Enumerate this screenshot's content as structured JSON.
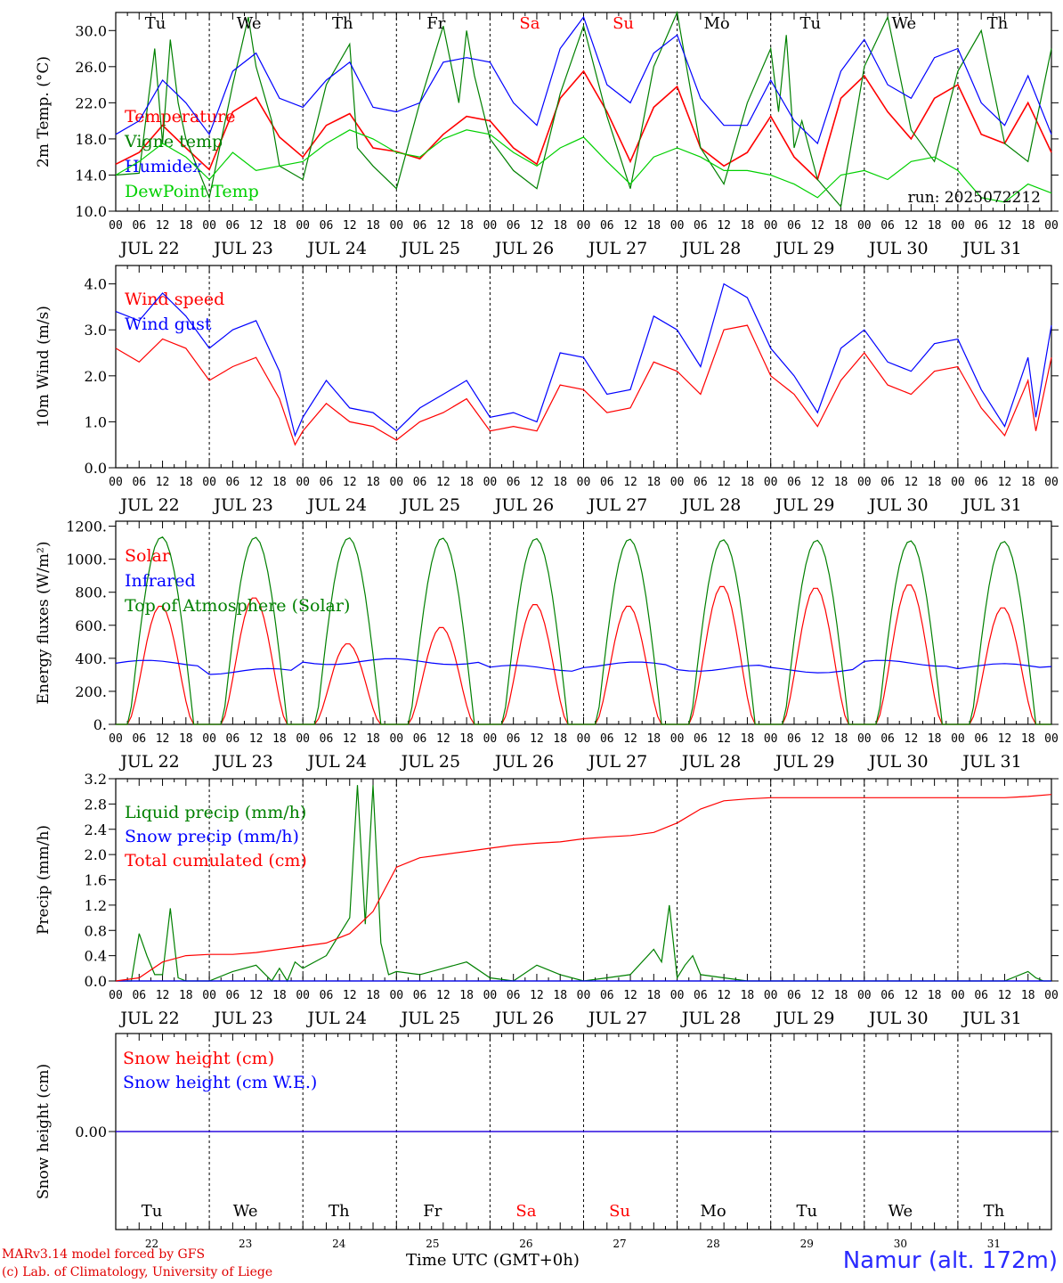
{
  "chart_data": [
    {
      "type": "line",
      "id": "temp",
      "ylabel": "2m Temp. (°C)",
      "ylim": [
        10,
        32
      ],
      "yticks": [
        "10.0",
        "14.0",
        "18.0",
        "22.0",
        "26.0",
        "30.0"
      ],
      "annotation": "run: 2025072212",
      "series": [
        {
          "name": "Temperature",
          "color": "#ff0000",
          "x": [
            0,
            6,
            12,
            18,
            24,
            30,
            36,
            42,
            48,
            54,
            60,
            66,
            72,
            78,
            84,
            90,
            96,
            102,
            108,
            114,
            120,
            126,
            132,
            138,
            144,
            150,
            156,
            162,
            168,
            174,
            180,
            186,
            192,
            198,
            204,
            210,
            216,
            222,
            228,
            234,
            240
          ],
          "y": [
            15.2,
            16.5,
            19.5,
            17.0,
            14.6,
            21.0,
            22.6,
            18.2,
            16.0,
            19.5,
            20.8,
            17.0,
            16.6,
            15.8,
            18.5,
            20.5,
            20.0,
            17.0,
            15.2,
            22.5,
            25.5,
            21.0,
            15.5,
            21.5,
            23.8,
            17.0,
            15.0,
            16.5,
            20.5,
            16.0,
            13.5,
            22.5,
            25.0,
            21.0,
            18.0,
            22.5,
            24.0,
            18.5,
            17.5,
            22.0,
            16.5
          ]
        },
        {
          "name": "Vigne temp",
          "color": "#008000",
          "x": [
            0,
            6,
            10,
            12,
            14,
            16,
            18,
            24,
            30,
            34,
            36,
            40,
            42,
            48,
            54,
            60,
            62,
            66,
            72,
            78,
            84,
            88,
            90,
            92,
            96,
            102,
            108,
            114,
            120,
            126,
            132,
            138,
            144,
            150,
            156,
            162,
            168,
            170,
            172,
            174,
            176,
            180,
            186,
            192,
            198,
            204,
            210,
            216,
            222,
            228,
            234,
            240
          ],
          "y": [
            14.0,
            14.2,
            28.0,
            17.5,
            29.0,
            22.0,
            18.0,
            11.5,
            24.0,
            31.5,
            26.0,
            20.0,
            15.0,
            13.5,
            24.0,
            28.5,
            17.0,
            15.0,
            12.5,
            22.0,
            30.5,
            22.0,
            30.0,
            25.0,
            18.0,
            14.5,
            12.5,
            23.0,
            30.5,
            20.5,
            12.5,
            26.0,
            32.0,
            17.0,
            13.0,
            22.0,
            28.0,
            21.0,
            29.5,
            17.0,
            20.0,
            13.5,
            10.5,
            26.0,
            31.5,
            19.0,
            15.5,
            25.5,
            30.0,
            17.5,
            15.5,
            28.0
          ]
        },
        {
          "name": "Humidex",
          "color": "#0000ff",
          "x": [
            0,
            6,
            12,
            18,
            24,
            30,
            36,
            42,
            48,
            54,
            60,
            66,
            72,
            78,
            84,
            90,
            96,
            102,
            108,
            114,
            120,
            126,
            132,
            138,
            144,
            150,
            156,
            162,
            168,
            174,
            180,
            186,
            192,
            198,
            204,
            210,
            216,
            222,
            228,
            234,
            240
          ],
          "y": [
            18.5,
            20.0,
            24.5,
            22.0,
            18.5,
            25.5,
            27.5,
            22.5,
            21.5,
            24.5,
            26.5,
            21.5,
            21.0,
            22.0,
            26.5,
            27.0,
            26.5,
            22.0,
            19.5,
            28.0,
            31.5,
            24.0,
            22.0,
            27.5,
            29.5,
            22.5,
            19.5,
            19.5,
            24.5,
            20.0,
            17.5,
            25.5,
            29.0,
            24.0,
            22.5,
            27.0,
            28.0,
            22.0,
            19.5,
            25.0,
            18.5
          ]
        },
        {
          "name": "DewPoint Temp",
          "color": "#00d000",
          "x": [
            0,
            6,
            12,
            18,
            24,
            30,
            36,
            42,
            48,
            54,
            60,
            66,
            72,
            78,
            84,
            90,
            96,
            102,
            108,
            114,
            120,
            126,
            132,
            138,
            144,
            150,
            156,
            162,
            168,
            174,
            180,
            186,
            192,
            198,
            204,
            210,
            216,
            222,
            228,
            234,
            240
          ],
          "y": [
            14.0,
            15.5,
            17.5,
            16.0,
            13.5,
            16.5,
            14.5,
            15.0,
            15.5,
            17.5,
            19.0,
            18.0,
            16.5,
            16.0,
            18.0,
            19.0,
            18.5,
            16.5,
            15.0,
            17.0,
            18.2,
            15.5,
            13.0,
            16.0,
            17.0,
            16.0,
            14.5,
            14.5,
            14.0,
            13.0,
            11.5,
            14.0,
            14.5,
            13.5,
            15.5,
            16.0,
            14.5,
            11.5,
            11.0,
            13.0,
            12.0
          ]
        }
      ]
    },
    {
      "type": "line",
      "id": "wind",
      "ylabel": "10m Wind (m/s)",
      "ylim": [
        0,
        4.4
      ],
      "yticks": [
        "0.0",
        "1.0",
        "2.0",
        "3.0",
        "4.0"
      ],
      "series": [
        {
          "name": "Wind speed",
          "color": "#ff0000",
          "x": [
            0,
            6,
            12,
            18,
            24,
            30,
            36,
            42,
            46,
            48,
            54,
            60,
            66,
            72,
            78,
            84,
            90,
            96,
            102,
            108,
            114,
            120,
            126,
            132,
            138,
            144,
            150,
            156,
            162,
            168,
            174,
            180,
            186,
            192,
            198,
            204,
            210,
            216,
            222,
            228,
            234,
            236,
            240
          ],
          "y": [
            2.6,
            2.3,
            2.8,
            2.6,
            1.9,
            2.2,
            2.4,
            1.5,
            0.5,
            0.8,
            1.4,
            1.0,
            0.9,
            0.6,
            1.0,
            1.2,
            1.5,
            0.8,
            0.9,
            0.8,
            1.8,
            1.7,
            1.2,
            1.3,
            2.3,
            2.1,
            1.6,
            3.0,
            3.1,
            2.0,
            1.6,
            0.9,
            1.9,
            2.5,
            1.8,
            1.6,
            2.1,
            2.2,
            1.3,
            0.7,
            1.9,
            0.8,
            2.4
          ]
        },
        {
          "name": "Wind gust",
          "color": "#0000ff",
          "x": [
            0,
            6,
            12,
            18,
            24,
            30,
            36,
            42,
            46,
            48,
            54,
            60,
            66,
            72,
            78,
            84,
            90,
            96,
            102,
            108,
            114,
            120,
            126,
            132,
            138,
            144,
            150,
            156,
            162,
            168,
            174,
            180,
            186,
            192,
            198,
            204,
            210,
            216,
            222,
            228,
            234,
            236,
            240
          ],
          "y": [
            3.4,
            3.2,
            3.8,
            3.3,
            2.6,
            3.0,
            3.2,
            2.1,
            0.7,
            1.1,
            1.9,
            1.3,
            1.2,
            0.8,
            1.3,
            1.6,
            1.9,
            1.1,
            1.2,
            1.0,
            2.5,
            2.4,
            1.6,
            1.7,
            3.3,
            3.0,
            2.2,
            4.0,
            3.7,
            2.6,
            2.0,
            1.2,
            2.6,
            3.0,
            2.3,
            2.1,
            2.7,
            2.8,
            1.7,
            0.9,
            2.4,
            1.1,
            3.1
          ]
        }
      ]
    },
    {
      "type": "line",
      "id": "energy",
      "ylabel": "Energy fluxes (W/m²)",
      "ylim": [
        0,
        1230
      ],
      "yticks": [
        "0.",
        "200.",
        "400.",
        "600.",
        "800.",
        "1000.",
        "1200."
      ],
      "series": [
        {
          "name": "Solar",
          "color": "#ff0000",
          "day_peaks": [
            720,
            770,
            490,
            590,
            730,
            720,
            840,
            830,
            850,
            710
          ]
        },
        {
          "name": "Infrared",
          "color": "#0000ff",
          "day_levels": [
            370,
            320,
            380,
            380,
            340,
            360,
            340,
            330,
            370,
            350
          ]
        },
        {
          "name": "Top of Atmosphere (Solar)",
          "color": "#008000",
          "day_peaks": [
            1135,
            1133,
            1130,
            1128,
            1125,
            1122,
            1118,
            1115,
            1112,
            1108
          ]
        }
      ]
    },
    {
      "type": "line",
      "id": "precip",
      "ylabel": "Precip (mm/h)",
      "ylim": [
        0,
        3.2
      ],
      "yticks": [
        "0.0",
        "0.4",
        "0.8",
        "1.2",
        "1.6",
        "2.0",
        "2.4",
        "2.8",
        "3.2"
      ],
      "series": [
        {
          "name": "Liquid precip (mm/h)",
          "color": "#008000",
          "x": [
            0,
            4,
            6,
            8,
            10,
            12,
            14,
            16,
            18,
            24,
            30,
            36,
            40,
            42,
            44,
            46,
            48,
            54,
            60,
            62,
            64,
            66,
            68,
            70,
            72,
            78,
            84,
            90,
            96,
            102,
            108,
            114,
            120,
            126,
            132,
            138,
            140,
            142,
            144,
            146,
            148,
            150,
            156,
            162,
            168,
            174,
            180,
            186,
            192,
            198,
            204,
            210,
            216,
            222,
            228,
            234,
            236,
            238,
            240
          ],
          "y": [
            0,
            0,
            0.75,
            0.4,
            0.1,
            0.1,
            1.15,
            0.05,
            0,
            0,
            0.15,
            0.25,
            0,
            0.2,
            0,
            0.3,
            0.2,
            0.4,
            1.0,
            3.1,
            0.9,
            3.1,
            0.6,
            0.1,
            0.15,
            0.1,
            0.2,
            0.3,
            0.05,
            0,
            0.25,
            0.1,
            0,
            0.05,
            0.1,
            0.5,
            0.3,
            1.2,
            0.05,
            0.25,
            0.4,
            0.1,
            0.05,
            0,
            0,
            0,
            0,
            0,
            0,
            0,
            0,
            0,
            0,
            0,
            0,
            0.15,
            0.05,
            0,
            0
          ]
        },
        {
          "name": "Snow precip (mm/h)",
          "color": "#0000ff",
          "x": [
            0,
            240
          ],
          "y": [
            0,
            0
          ]
        },
        {
          "name": "Total cumulated (cm)",
          "color": "#ff0000",
          "x": [
            0,
            6,
            12,
            18,
            24,
            30,
            36,
            42,
            48,
            54,
            60,
            66,
            72,
            78,
            84,
            90,
            96,
            102,
            108,
            114,
            120,
            126,
            132,
            138,
            144,
            150,
            156,
            162,
            168,
            174,
            180,
            186,
            192,
            198,
            204,
            210,
            216,
            222,
            228,
            234,
            240
          ],
          "y": [
            0,
            0.05,
            0.3,
            0.4,
            0.42,
            0.42,
            0.45,
            0.5,
            0.55,
            0.6,
            0.75,
            1.1,
            1.8,
            1.95,
            2.0,
            2.05,
            2.1,
            2.15,
            2.18,
            2.2,
            2.25,
            2.28,
            2.3,
            2.35,
            2.5,
            2.72,
            2.85,
            2.88,
            2.9,
            2.9,
            2.9,
            2.9,
            2.9,
            2.9,
            2.9,
            2.9,
            2.9,
            2.9,
            2.9,
            2.92,
            2.95
          ]
        }
      ]
    },
    {
      "type": "line",
      "id": "snow",
      "ylabel": "Snow height (cm)",
      "yticks": [
        "0.00"
      ],
      "series": [
        {
          "name": "Snow height (cm)",
          "color": "#ff0000",
          "x": [
            0,
            240
          ],
          "y": [
            0,
            0
          ]
        },
        {
          "name": "Snow height (cm W.E.)",
          "color": "#0000ff",
          "x": [
            0,
            240
          ],
          "y": [
            0,
            0
          ]
        }
      ]
    }
  ],
  "axis": {
    "hour_labels": [
      "00",
      "06",
      "12",
      "18"
    ],
    "end_hour_label": "00",
    "dates": [
      "JUL 22",
      "JUL 23",
      "JUL 24",
      "JUL 25",
      "JUL 26",
      "JUL 27",
      "JUL 28",
      "JUL 29",
      "JUL 30",
      "JUL 31"
    ],
    "weekdays": [
      "Tu",
      "We",
      "Th",
      "Fr",
      "Sa",
      "Su",
      "Mo",
      "Tu",
      "We",
      "Th"
    ],
    "weekend_color": "#ff0000",
    "weekday_color": "#000000",
    "day_numbers": [
      "22",
      "23",
      "24",
      "25",
      "26",
      "27",
      "28",
      "29",
      "30",
      "31"
    ]
  },
  "footer": {
    "credit_line1": "MARv3.14 model forced by GFS",
    "credit_line2": "(c) Lab. of Climatology, University of Liege",
    "time_label": "Time UTC (GMT+0h)",
    "station": "Namur (alt. 172m)"
  }
}
